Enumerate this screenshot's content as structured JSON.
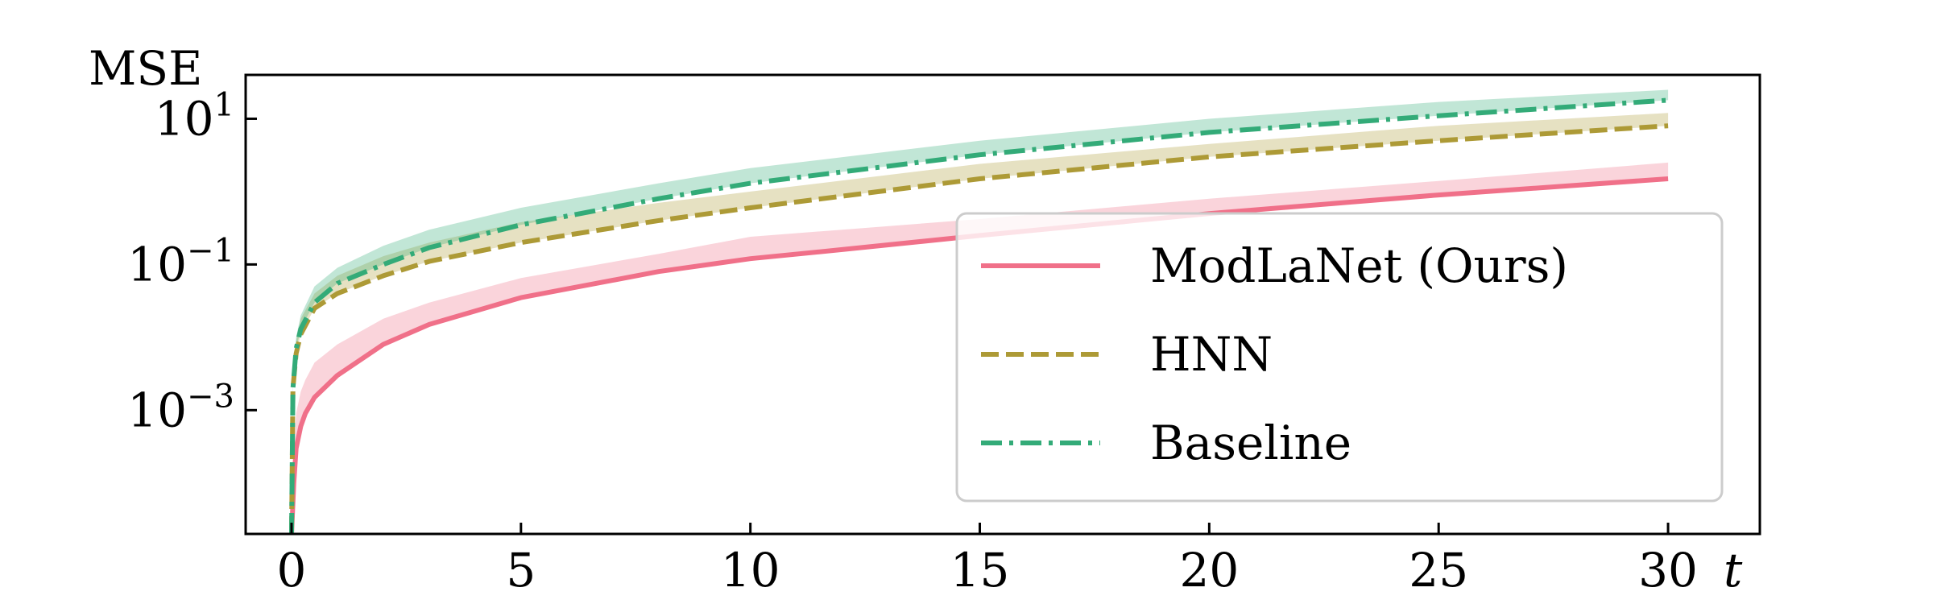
{
  "chart_data": {
    "type": "line",
    "ylabel": "MSE",
    "xlabel": "t",
    "yscale": "log",
    "xlim": [
      -1,
      32
    ],
    "ylim": [
      2e-05,
      40
    ],
    "xticks": [
      0,
      5,
      10,
      15,
      20,
      25,
      30
    ],
    "xtick_labels": [
      "0",
      "5",
      "10",
      "15",
      "20",
      "25",
      "30"
    ],
    "yticks": [
      0.001,
      0.1,
      10
    ],
    "ytick_labels": [
      {
        "base": "10",
        "exp": "−3"
      },
      {
        "base": "10",
        "exp": "−1"
      },
      {
        "base": "10",
        "exp": "1"
      }
    ],
    "grid": false,
    "legend_position": "lower right",
    "series": [
      {
        "name": "ModLaNet (Ours)",
        "color": "#f07089",
        "linestyle": "solid",
        "x": [
          0,
          0.05,
          0.1,
          0.2,
          0.3,
          0.5,
          1,
          2,
          3,
          5,
          8,
          10,
          12,
          15,
          20,
          25,
          30
        ],
        "y": [
          2e-05,
          0.0001,
          0.0003,
          0.0006,
          0.0009,
          0.0015,
          0.003,
          0.008,
          0.015,
          0.035,
          0.08,
          0.12,
          0.16,
          0.25,
          0.5,
          0.9,
          1.5
        ],
        "upper": [
          2e-05,
          0.0003,
          0.0009,
          0.0018,
          0.0026,
          0.0045,
          0.008,
          0.018,
          0.03,
          0.065,
          0.14,
          0.24,
          0.3,
          0.42,
          0.8,
          1.4,
          2.5
        ]
      },
      {
        "name": "HNN",
        "color": "#ad9a36",
        "linestyle": "dashed",
        "x": [
          0,
          0.03,
          0.1,
          0.2,
          0.5,
          1,
          2,
          3,
          5,
          8,
          10,
          15,
          20,
          25,
          30
        ],
        "y": [
          2e-05,
          0.002,
          0.006,
          0.011,
          0.025,
          0.04,
          0.07,
          0.11,
          0.2,
          0.4,
          0.6,
          1.5,
          3,
          5,
          8
        ],
        "upper": [
          2e-05,
          0.003,
          0.009,
          0.018,
          0.04,
          0.07,
          0.13,
          0.2,
          0.38,
          0.7,
          1.0,
          2.4,
          4.5,
          8,
          12
        ]
      },
      {
        "name": "Baseline",
        "color": "#33ab78",
        "linestyle": "dashdot",
        "x": [
          0,
          0.03,
          0.1,
          0.2,
          0.5,
          1,
          2,
          3,
          5,
          8,
          10,
          15,
          20,
          25,
          30
        ],
        "y": [
          2e-05,
          0.002,
          0.007,
          0.013,
          0.03,
          0.055,
          0.1,
          0.17,
          0.35,
          0.8,
          1.3,
          3.2,
          6.5,
          11,
          18
        ],
        "upper": [
          2e-05,
          0.003,
          0.01,
          0.02,
          0.05,
          0.09,
          0.18,
          0.3,
          0.6,
          1.3,
          2.1,
          5,
          10,
          17,
          25
        ]
      }
    ]
  }
}
